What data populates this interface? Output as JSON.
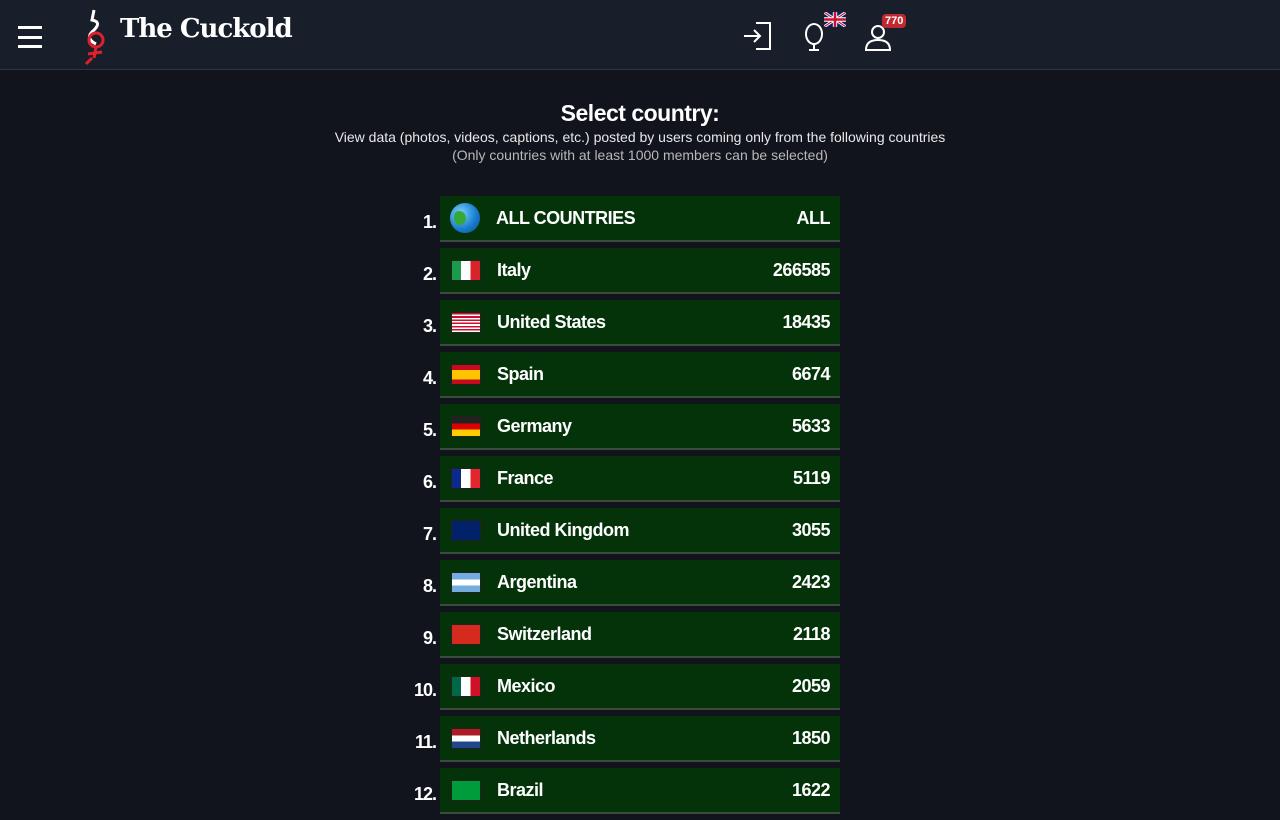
{
  "header": {
    "logo_text": "The Cuckold",
    "notifications_count": "770",
    "language": "en-GB"
  },
  "page": {
    "title": "Select country:",
    "subtitle": "View data (photos, videos, captions, etc.) posted by users coming only from the following countries",
    "note": "(Only countries with at least 1000 members can be selected)"
  },
  "countries": [
    {
      "rank": "1.",
      "name": "ALL COUNTRIES",
      "count": "ALL",
      "flag": "globe"
    },
    {
      "rank": "2.",
      "name": "Italy",
      "count": "266585",
      "flag": "it"
    },
    {
      "rank": "3.",
      "name": "United States",
      "count": "18435",
      "flag": "us"
    },
    {
      "rank": "4.",
      "name": "Spain",
      "count": "6674",
      "flag": "es"
    },
    {
      "rank": "5.",
      "name": "Germany",
      "count": "5633",
      "flag": "de"
    },
    {
      "rank": "6.",
      "name": "France",
      "count": "5119",
      "flag": "fr"
    },
    {
      "rank": "7.",
      "name": "United Kingdom",
      "count": "3055",
      "flag": "gb"
    },
    {
      "rank": "8.",
      "name": "Argentina",
      "count": "2423",
      "flag": "ar"
    },
    {
      "rank": "9.",
      "name": "Switzerland",
      "count": "2118",
      "flag": "ch"
    },
    {
      "rank": "10.",
      "name": "Mexico",
      "count": "2059",
      "flag": "mx"
    },
    {
      "rank": "11.",
      "name": "Netherlands",
      "count": "1850",
      "flag": "nl"
    },
    {
      "rank": "12.",
      "name": "Brazil",
      "count": "1622",
      "flag": "br"
    }
  ]
}
